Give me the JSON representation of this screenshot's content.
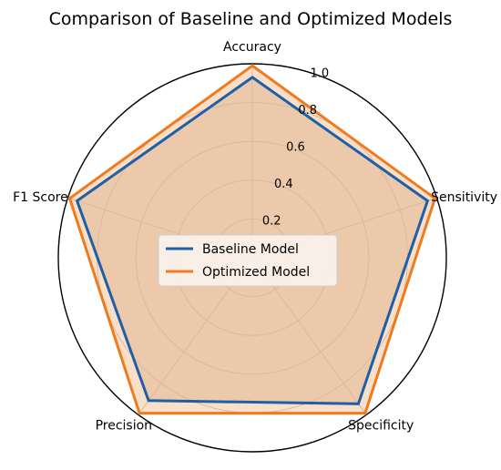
{
  "chart_data": {
    "type": "radar",
    "title": "Comparison of Baseline and Optimized Models",
    "categories": [
      "Accuracy",
      "Sensitivity",
      "Specificity",
      "Precision",
      "F1 Score"
    ],
    "rlim": [
      0,
      1.0
    ],
    "radial_ticks": [
      0.2,
      0.4,
      0.6,
      0.8,
      1.0
    ],
    "radial_tick_labels": [
      "0.2",
      "0.4",
      "0.6",
      "0.8",
      "1.0"
    ],
    "grid": true,
    "legend_position": "center",
    "series": [
      {
        "name": "Baseline Model",
        "values": [
          0.93,
          0.95,
          0.93,
          0.91,
          0.95
        ],
        "color": "#1f5fa8",
        "fill_color": "#c8a58a"
      },
      {
        "name": "Optimized Model",
        "values": [
          0.99,
          0.99,
          0.99,
          0.99,
          0.99
        ],
        "color": "#f07a1f",
        "fill_color": "#f6c49a"
      }
    ]
  }
}
